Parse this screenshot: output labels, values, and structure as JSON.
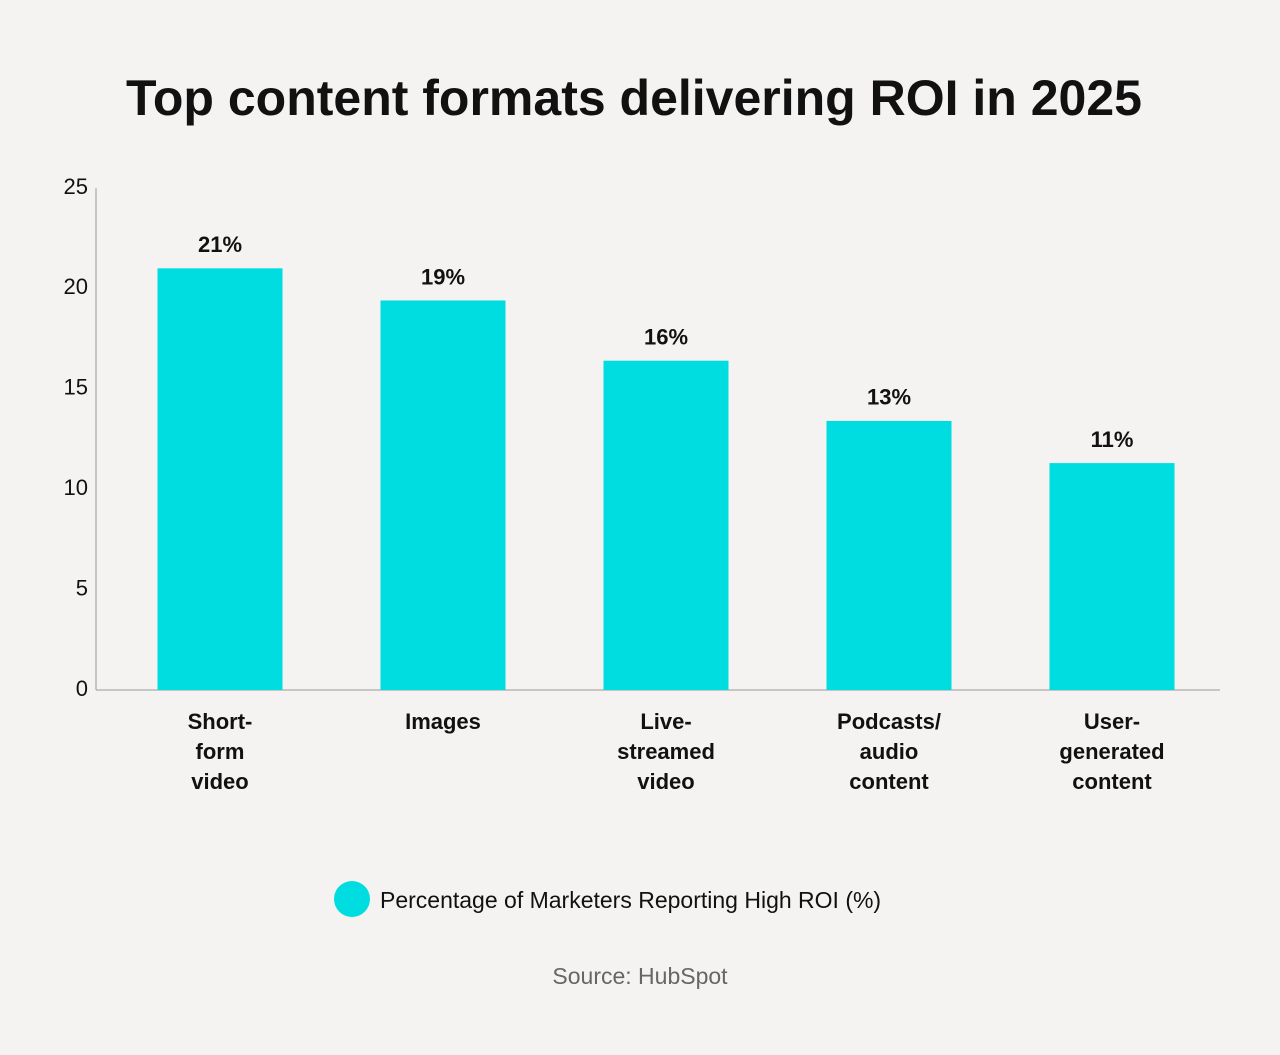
{
  "chart_data": {
    "type": "bar",
    "title": "Top content formats delivering ROI in 2025",
    "categories": [
      "Short-form video",
      "Images",
      "Live-streamed video",
      "Podcasts/ audio content",
      "User-generated content"
    ],
    "series": [
      {
        "name": "Percentage of Marketers Reporting High ROI (%)",
        "color": "#00dde0",
        "values": [
          21,
          19.4,
          16.4,
          13.4,
          11.3
        ],
        "value_labels": [
          "21%",
          "19%",
          "16%",
          "13%",
          "11%"
        ]
      }
    ],
    "ylim": [
      0,
      25
    ],
    "yticks": [
      0,
      5,
      10,
      15,
      20,
      25
    ],
    "grid": false,
    "legend": "bottom",
    "source": "Source: HubSpot"
  }
}
